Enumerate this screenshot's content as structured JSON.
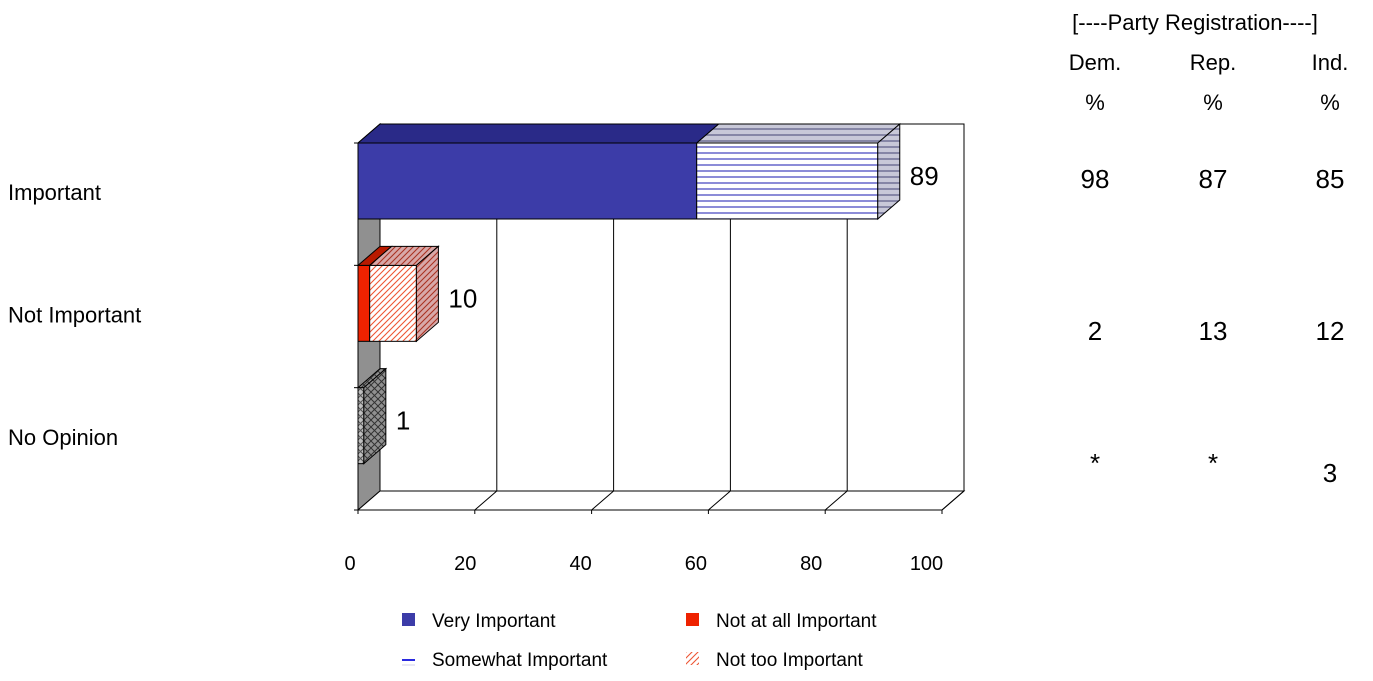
{
  "chart_data": {
    "type": "bar",
    "orientation": "horizontal",
    "stacked": true,
    "three_d": true,
    "categories": [
      "Important",
      "Not Important",
      "No Opinion"
    ],
    "series": [
      {
        "name": "Very Important",
        "values": [
          58,
          null,
          null
        ],
        "color": "#3c3ca8",
        "pattern": "solid"
      },
      {
        "name": "Somewhat Important",
        "values": [
          31,
          null,
          null
        ],
        "color": "#ffffff",
        "pattern": "horizontal-lines-blue"
      },
      {
        "name": "Not at all Important",
        "values": [
          null,
          2,
          null
        ],
        "color": "#ee2200",
        "pattern": "solid"
      },
      {
        "name": "Not too Important",
        "values": [
          null,
          8,
          null
        ],
        "color": "#ffffff",
        "pattern": "diagonal-lines-red"
      },
      {
        "name": "No Opinion",
        "values": [
          null,
          null,
          1
        ],
        "color": "#b8b8b8",
        "pattern": "crosshatch",
        "in_legend": false
      }
    ],
    "totals": [
      89,
      10,
      1
    ],
    "total_labels": [
      "89",
      "10",
      "1"
    ],
    "xlim": [
      0,
      100
    ],
    "x_ticks": [
      "0",
      "20",
      "40",
      "60",
      "80",
      "100"
    ],
    "grid": true,
    "legend_position": "bottom",
    "side_table": {
      "group_header": "[----Party Registration----]",
      "columns": [
        {
          "name": "Dem.",
          "unit": "%"
        },
        {
          "name": "Rep.",
          "unit": "%"
        },
        {
          "name": "Ind.",
          "unit": "%"
        }
      ],
      "rows": [
        [
          "98",
          "87",
          "85"
        ],
        [
          "2",
          "13",
          "12"
        ],
        [
          "*",
          "*",
          "3"
        ]
      ]
    }
  }
}
